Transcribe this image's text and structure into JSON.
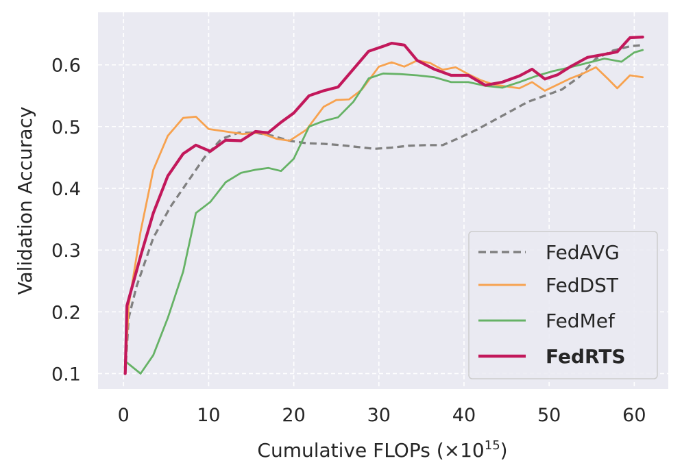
{
  "chart_data": {
    "type": "line",
    "title": "",
    "xlabel": "Cumulative FLOPs (×10",
    "xlabel_superscript": "15",
    "xlabel_suffix": ")",
    "ylabel": "Validation Accuracy",
    "xlim": [
      -3,
      64
    ],
    "ylim": [
      0.075,
      0.685
    ],
    "xticks": [
      0,
      10,
      20,
      30,
      40,
      50,
      60
    ],
    "yticks": [
      0.1,
      0.2,
      0.3,
      0.4,
      0.5,
      0.6
    ],
    "xtick_labels": [
      "0",
      "10",
      "20",
      "30",
      "40",
      "50",
      "60"
    ],
    "ytick_labels": [
      "0.1",
      "0.2",
      "0.3",
      "0.4",
      "0.5",
      "0.6"
    ],
    "grid": true,
    "legend_position": "bottom-right",
    "series": [
      {
        "name": "FedAVG",
        "color": "#808080",
        "style": "dashed",
        "bold": false,
        "x": [
          0.2,
          0.6,
          1.5,
          3.5,
          5.5,
          7.5,
          9.5,
          11.5,
          13.5,
          15.5,
          17.5,
          19.5,
          21.5,
          23.5,
          25.5,
          27.5,
          29.5,
          31.5,
          33.5,
          35.5,
          37.5,
          39.5,
          41.5,
          43.5,
          45.5,
          47.5,
          49.5,
          51.5,
          53.5,
          55.5,
          57.5,
          59.5,
          61
        ],
        "y": [
          0.1,
          0.19,
          0.24,
          0.32,
          0.37,
          0.41,
          0.45,
          0.48,
          0.49,
          0.49,
          0.485,
          0.477,
          0.473,
          0.472,
          0.47,
          0.467,
          0.464,
          0.466,
          0.469,
          0.47,
          0.47,
          0.482,
          0.495,
          0.51,
          0.525,
          0.54,
          0.55,
          0.56,
          0.58,
          0.61,
          0.623,
          0.63,
          0.632
        ]
      },
      {
        "name": "FedDST",
        "color": "#f7a24f",
        "style": "solid",
        "bold": false,
        "x": [
          0.2,
          0.6,
          2,
          3.5,
          5.2,
          7,
          8.5,
          10,
          12,
          14,
          16,
          18,
          19.5,
          21.5,
          23.5,
          25,
          26.5,
          28,
          30,
          31.5,
          33,
          34.5,
          36,
          37.5,
          39,
          40.5,
          42,
          43.5,
          45,
          46.5,
          48,
          49.5,
          51,
          52.5,
          54,
          55.5,
          57,
          58,
          59.5,
          61
        ],
        "y": [
          0.1,
          0.21,
          0.33,
          0.43,
          0.485,
          0.514,
          0.516,
          0.496,
          0.492,
          0.488,
          0.49,
          0.48,
          0.477,
          0.495,
          0.532,
          0.543,
          0.544,
          0.56,
          0.597,
          0.604,
          0.597,
          0.607,
          0.603,
          0.592,
          0.596,
          0.585,
          0.575,
          0.568,
          0.565,
          0.562,
          0.572,
          0.558,
          0.568,
          0.578,
          0.586,
          0.596,
          0.576,
          0.562,
          0.583,
          0.58
        ]
      },
      {
        "name": "FedMef",
        "color": "#66b266",
        "style": "solid",
        "bold": false,
        "x": [
          0.2,
          2,
          3.5,
          5.2,
          7,
          8.5,
          10.2,
          12,
          13.8,
          15.5,
          17,
          18.5,
          20,
          21.8,
          23.5,
          25.2,
          27,
          28.8,
          30.5,
          32.5,
          34.5,
          36.5,
          38.5,
          40.5,
          42.5,
          44.5,
          46.5,
          48.5,
          50.5,
          52.5,
          54.5,
          56.5,
          58.5,
          60,
          61
        ],
        "y": [
          0.12,
          0.1,
          0.13,
          0.19,
          0.265,
          0.36,
          0.378,
          0.41,
          0.425,
          0.43,
          0.433,
          0.428,
          0.448,
          0.5,
          0.509,
          0.515,
          0.54,
          0.578,
          0.586,
          0.585,
          0.583,
          0.58,
          0.572,
          0.572,
          0.566,
          0.563,
          0.572,
          0.582,
          0.59,
          0.596,
          0.603,
          0.61,
          0.605,
          0.62,
          0.624
        ]
      },
      {
        "name": "FedRTS",
        "color": "#c2185b",
        "style": "solid",
        "bold": true,
        "x": [
          0.2,
          0.4,
          2,
          3.5,
          5.2,
          7,
          8.5,
          10.2,
          12,
          13.8,
          15.5,
          17,
          18.5,
          20,
          21.8,
          23.5,
          25.2,
          27,
          28.8,
          30.5,
          31.5,
          33,
          34.5,
          36.5,
          38.5,
          40.5,
          42.5,
          44.5,
          46.5,
          48,
          49.5,
          51,
          52.5,
          54.5,
          56.5,
          58,
          59.5,
          61
        ],
        "y": [
          0.1,
          0.21,
          0.29,
          0.36,
          0.42,
          0.456,
          0.47,
          0.46,
          0.478,
          0.477,
          0.492,
          0.49,
          0.507,
          0.522,
          0.55,
          0.558,
          0.564,
          0.593,
          0.622,
          0.63,
          0.635,
          0.632,
          0.607,
          0.593,
          0.583,
          0.583,
          0.567,
          0.572,
          0.582,
          0.593,
          0.577,
          0.584,
          0.597,
          0.612,
          0.617,
          0.621,
          0.644,
          0.645
        ]
      }
    ]
  }
}
